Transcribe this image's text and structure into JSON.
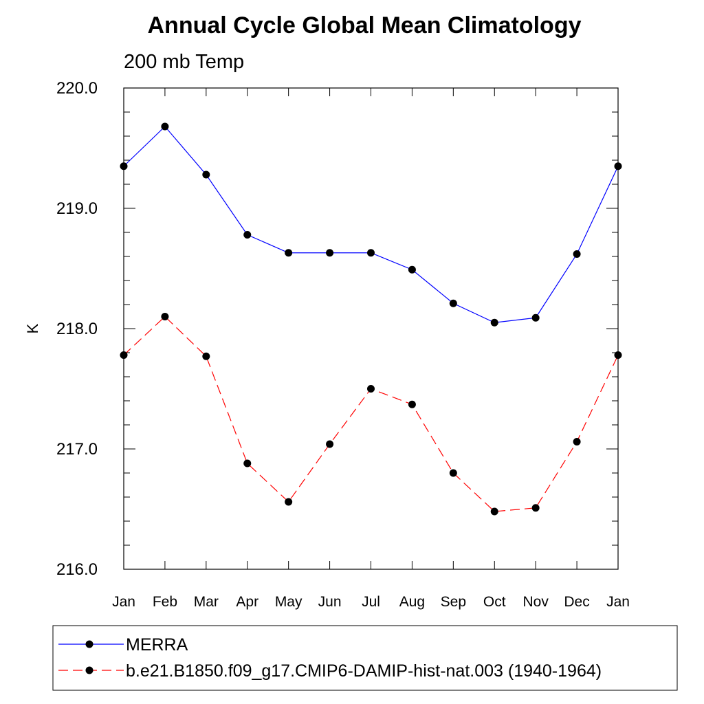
{
  "chart_data": {
    "type": "line",
    "title": "Annual Cycle Global Mean Climatology",
    "subtitle": "200 mb Temp",
    "xlabel": "",
    "ylabel": "K",
    "categories": [
      "Jan",
      "Feb",
      "Mar",
      "Apr",
      "May",
      "Jun",
      "Jul",
      "Aug",
      "Sep",
      "Oct",
      "Nov",
      "Dec",
      "Jan"
    ],
    "ylim": [
      216.0,
      220.0
    ],
    "yticks": [
      "216.0",
      "217.0",
      "218.0",
      "219.0",
      "220.0"
    ],
    "grid": false,
    "legend_position": "bottom",
    "series": [
      {
        "name": "MERRA",
        "color": "#0000ff",
        "dash": "solid",
        "values": [
          219.35,
          219.68,
          219.28,
          218.78,
          218.63,
          218.63,
          218.63,
          218.49,
          218.21,
          218.05,
          218.09,
          218.62,
          219.35
        ]
      },
      {
        "name": "b.e21.B1850.f09_g17.CMIP6-DAMIP-hist-nat.003 (1940-1964)",
        "color": "#ff0000",
        "dash": "dashed",
        "values": [
          217.78,
          218.1,
          217.77,
          216.88,
          216.56,
          217.04,
          217.5,
          217.37,
          216.8,
          216.48,
          216.51,
          217.06,
          217.78
        ]
      }
    ]
  }
}
